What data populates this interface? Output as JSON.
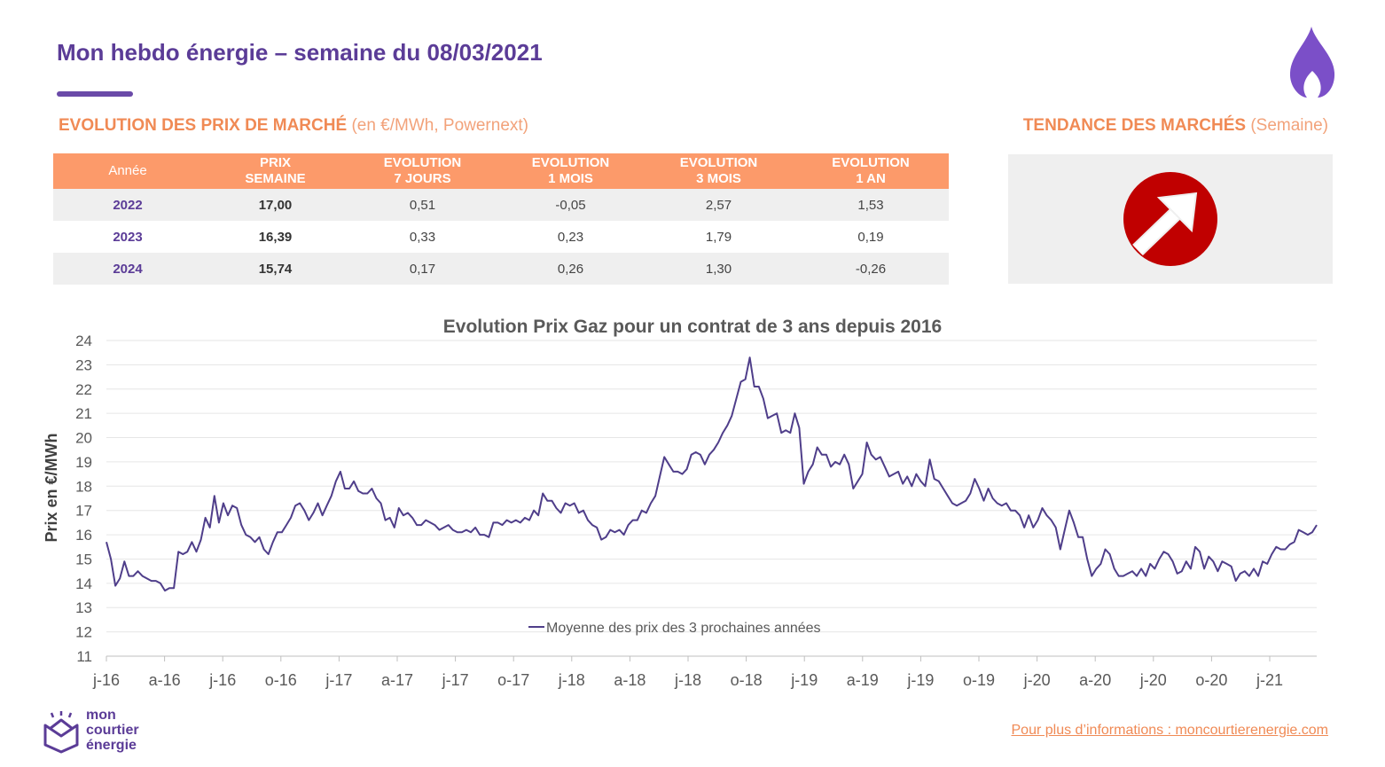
{
  "header": {
    "title": "Mon hebdo énergie – semaine du 08/03/2021"
  },
  "sections": {
    "market_prices": {
      "label": "EVOLUTION DES PRIX DE MARCHÉ",
      "sub": "(en €/MWh, Powernext)"
    },
    "trend": {
      "label": "TENDANCE DES MARCHÉS",
      "sub": "(Semaine)"
    }
  },
  "table": {
    "headers": [
      {
        "line1": "Année",
        "line2": ""
      },
      {
        "line1": "PRIX",
        "line2": "SEMAINE"
      },
      {
        "line1": "EVOLUTION",
        "line2": "7 JOURS"
      },
      {
        "line1": "EVOLUTION",
        "line2": "1 MOIS"
      },
      {
        "line1": "EVOLUTION",
        "line2": "3 MOIS"
      },
      {
        "line1": "EVOLUTION",
        "line2": "1 AN"
      }
    ],
    "rows": [
      {
        "year": "2022",
        "price": "17,00",
        "d7": "0,51",
        "m1": "-0,05",
        "m3": "2,57",
        "y1": "1,53"
      },
      {
        "year": "2023",
        "price": "16,39",
        "d7": "0,33",
        "m1": "0,23",
        "m3": "1,79",
        "y1": "0,19"
      },
      {
        "year": "2024",
        "price": "15,74",
        "d7": "0,17",
        "m1": "0,26",
        "m3": "1,30",
        "y1": "-0,26"
      }
    ]
  },
  "trend_indicator": {
    "icon": "arrow-up-right-icon",
    "color": "#c00000"
  },
  "chart_data": {
    "type": "line",
    "title": "Evolution Prix Gaz pour un contrat de 3 ans depuis 2016",
    "ylabel": "Prix en €/MWh",
    "xlabel": "",
    "ylim": [
      11,
      24
    ],
    "yticks": [
      11,
      12,
      13,
      14,
      15,
      16,
      17,
      18,
      19,
      20,
      21,
      22,
      23,
      24
    ],
    "x_tick_labels": [
      "j-16",
      "a-16",
      "j-16",
      "o-16",
      "j-17",
      "a-17",
      "j-17",
      "o-17",
      "j-18",
      "a-18",
      "j-18",
      "o-18",
      "j-19",
      "a-19",
      "j-19",
      "o-19",
      "j-20",
      "a-20",
      "j-20",
      "o-20",
      "j-21"
    ],
    "legend": "bottom-center",
    "grid": true,
    "series": [
      {
        "name": "Moyenne des prix des 3 prochaines années",
        "color": "#4f3e8a",
        "values": [
          15.7,
          15.0,
          13.9,
          14.2,
          14.9,
          14.3,
          14.3,
          14.5,
          14.3,
          14.2,
          14.1,
          14.1,
          14.0,
          13.7,
          13.8,
          13.8,
          15.3,
          15.2,
          15.3,
          15.7,
          15.3,
          15.8,
          16.7,
          16.3,
          17.6,
          16.5,
          17.3,
          16.8,
          17.2,
          17.1,
          16.4,
          16.0,
          15.9,
          15.7,
          15.9,
          15.4,
          15.2,
          15.7,
          16.1,
          16.1,
          16.4,
          16.7,
          17.2,
          17.3,
          17.0,
          16.6,
          16.9,
          17.3,
          16.8,
          17.2,
          17.6,
          18.2,
          18.6,
          17.9,
          17.9,
          18.2,
          17.8,
          17.7,
          17.7,
          17.9,
          17.5,
          17.3,
          16.6,
          16.7,
          16.3,
          17.1,
          16.8,
          16.9,
          16.7,
          16.4,
          16.4,
          16.6,
          16.5,
          16.4,
          16.2,
          16.3,
          16.4,
          16.2,
          16.1,
          16.1,
          16.2,
          16.1,
          16.3,
          16.0,
          16.0,
          15.9,
          16.5,
          16.5,
          16.4,
          16.6,
          16.5,
          16.6,
          16.5,
          16.7,
          16.6,
          17.0,
          16.8,
          17.7,
          17.4,
          17.4,
          17.1,
          16.9,
          17.3,
          17.2,
          17.3,
          16.9,
          17.0,
          16.6,
          16.4,
          16.3,
          15.8,
          15.9,
          16.2,
          16.1,
          16.2,
          16.0,
          16.4,
          16.6,
          16.6,
          17.0,
          16.9,
          17.3,
          17.6,
          18.4,
          19.2,
          18.9,
          18.6,
          18.6,
          18.5,
          18.7,
          19.3,
          19.4,
          19.3,
          18.9,
          19.3,
          19.5,
          19.8,
          20.2,
          20.5,
          20.9,
          21.6,
          22.3,
          22.4,
          23.3,
          22.1,
          22.1,
          21.6,
          20.8,
          20.9,
          21.0,
          20.2,
          20.3,
          20.2,
          21.0,
          20.4,
          18.1,
          18.6,
          18.9,
          19.6,
          19.3,
          19.3,
          18.8,
          19.0,
          18.9,
          19.3,
          18.9,
          17.9,
          18.2,
          18.5,
          19.8,
          19.3,
          19.1,
          19.2,
          18.8,
          18.4,
          18.5,
          18.6,
          18.1,
          18.4,
          18.0,
          18.5,
          18.2,
          18.0,
          19.1,
          18.3,
          18.2,
          17.9,
          17.6,
          17.3,
          17.2,
          17.3,
          17.4,
          17.7,
          18.3,
          17.9,
          17.4,
          17.9,
          17.5,
          17.3,
          17.2,
          17.3,
          17.0,
          17.0,
          16.8,
          16.3,
          16.8,
          16.3,
          16.6,
          17.1,
          16.8,
          16.6,
          16.3,
          15.4,
          16.2,
          17.0,
          16.5,
          15.9,
          15.9,
          15.0,
          14.3,
          14.6,
          14.8,
          15.4,
          15.2,
          14.6,
          14.3,
          14.3,
          14.4,
          14.5,
          14.3,
          14.6,
          14.3,
          14.8,
          14.6,
          15.0,
          15.3,
          15.2,
          14.9,
          14.4,
          14.5,
          14.9,
          14.6,
          15.5,
          15.3,
          14.6,
          15.1,
          14.9,
          14.5,
          14.9,
          14.8,
          14.7,
          14.1,
          14.4,
          14.5,
          14.3,
          14.6,
          14.3,
          14.9,
          14.8,
          15.2,
          15.5,
          15.4,
          15.4,
          15.6,
          15.7,
          16.2,
          16.1,
          16.0,
          16.1,
          16.4
        ]
      }
    ]
  },
  "footer": {
    "logo_lines": [
      "mon",
      "courtier",
      "énergie"
    ],
    "link": "Pour plus d’informations : moncourtierenergie.com"
  }
}
